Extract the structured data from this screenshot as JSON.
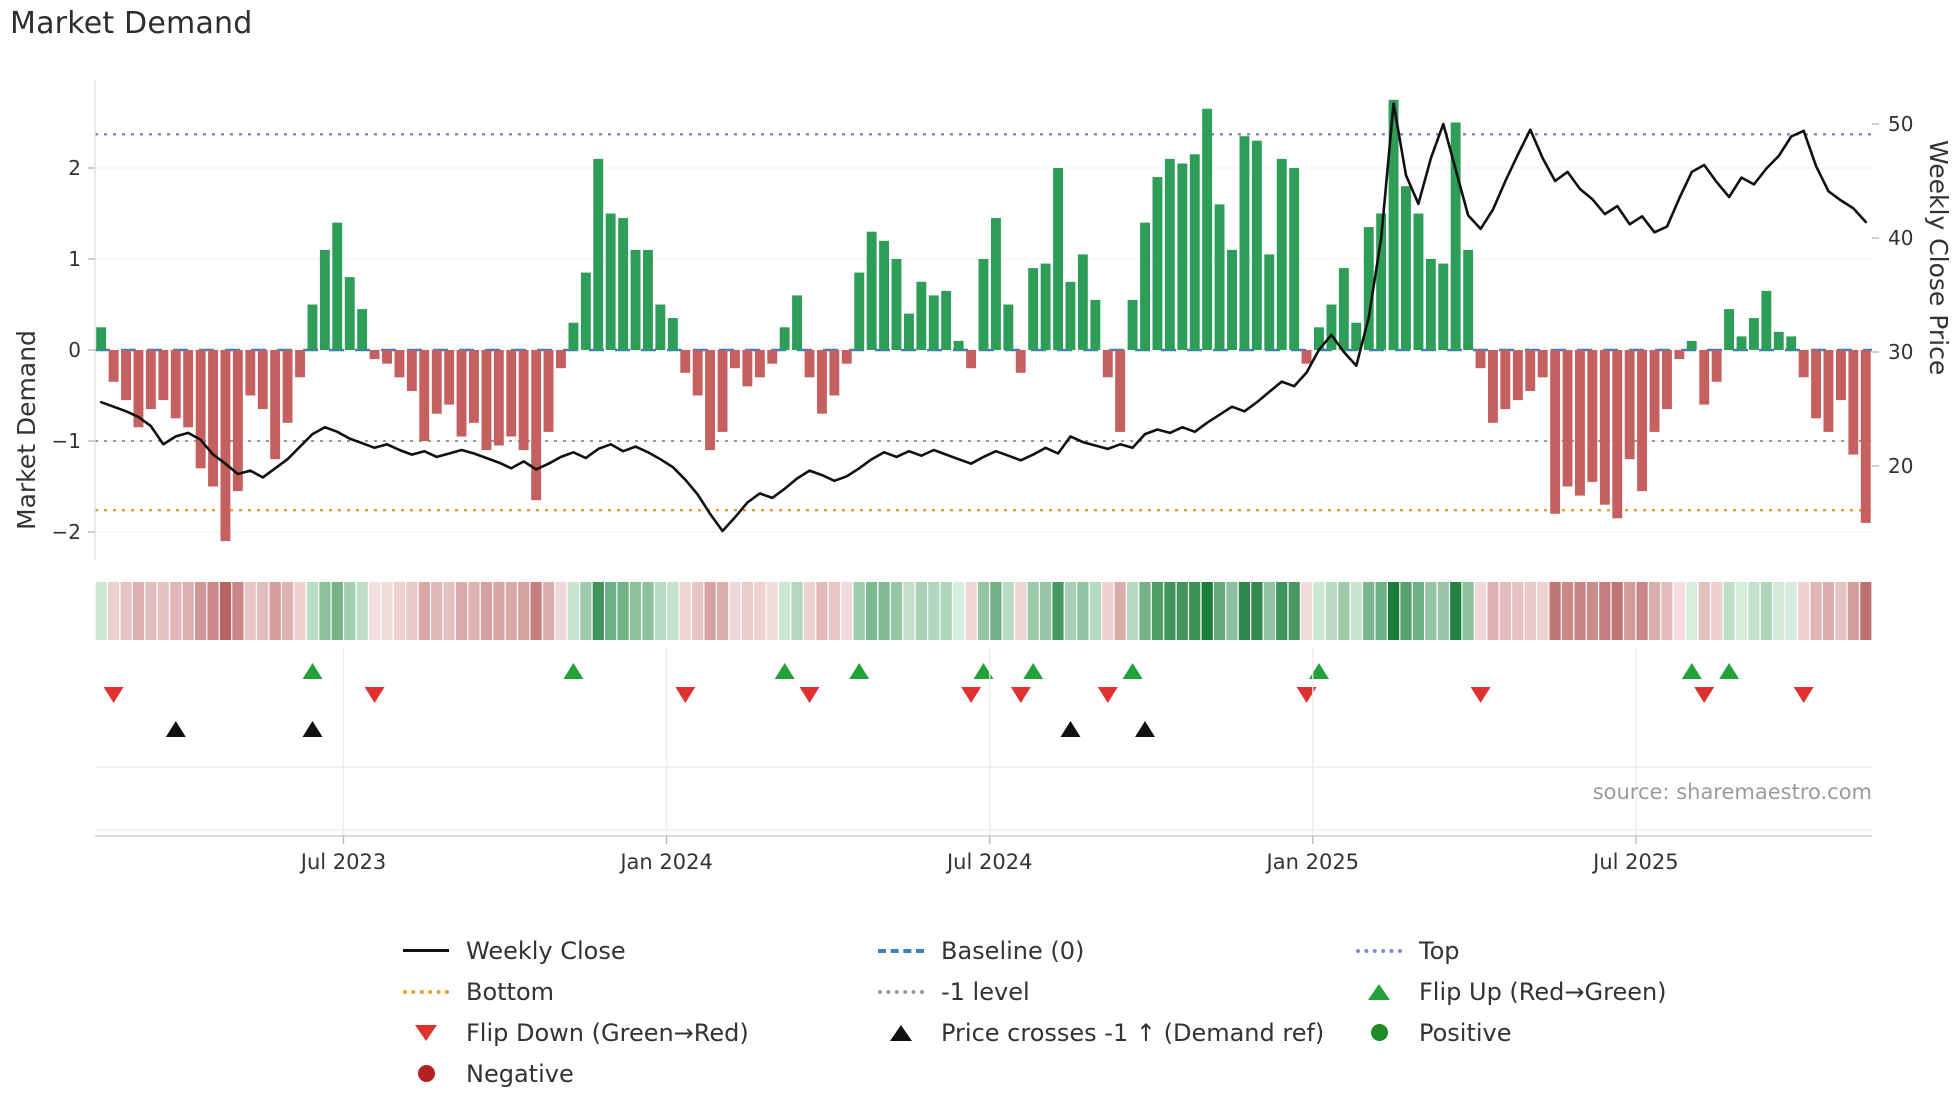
{
  "title": "Market Demand",
  "source_note": "source: sharemaestro.com",
  "y_left": {
    "label": "Market Demand",
    "ticks": [
      "2",
      "1",
      "0",
      "−1",
      "−2"
    ],
    "tick_values": [
      2,
      1,
      0,
      -1,
      -2
    ]
  },
  "y_right": {
    "label": "Weekly Close Price",
    "ticks": [
      "50",
      "40",
      "30",
      "20"
    ],
    "tick_values": [
      50,
      40,
      30,
      20
    ]
  },
  "legend": [
    {
      "icon": "line-black",
      "label": "Weekly Close"
    },
    {
      "icon": "dash-blue",
      "label": "Baseline (0)"
    },
    {
      "icon": "dot-purple",
      "label": "Top"
    },
    {
      "icon": "dot-orange",
      "label": "Bottom"
    },
    {
      "icon": "dot-gray",
      "label": "-1 level"
    },
    {
      "icon": "tri-up-green",
      "label": "Flip Up (Red→Green)"
    },
    {
      "icon": "tri-down-red",
      "label": "Flip Down (Green→Red)"
    },
    {
      "icon": "tri-up-black",
      "label": "Price crosses -1 ↑ (Demand ref)"
    },
    {
      "icon": "circle-green",
      "label": "Positive"
    },
    {
      "icon": "circle-darkred",
      "label": "Negative"
    }
  ],
  "colors": {
    "bar_positive": "#2e9d57",
    "bar_negative": "#c4605f",
    "price_line": "#111111",
    "baseline": "#3f7fc1",
    "top_line": "#8186d9",
    "bottom_line": "#f09a2e",
    "minus1_line": "#999999",
    "flip_up": "#23a239",
    "flip_down": "#e03131",
    "price_cross": "#111111",
    "positive_dot": "#1f8b24",
    "negative_dot": "#b22222"
  },
  "chart_data": {
    "type": "bar",
    "subtype": "weekly demand bars + price line overlay + heatmap strip + signal markers",
    "title": "Market Demand",
    "ylabel_left": "Market Demand",
    "ylabel_right": "Weekly Close Price",
    "ylim_left": [
      -2.6,
      3.0
    ],
    "ylim_right": [
      13,
      53
    ],
    "n_points": 143,
    "x_ticks": [
      {
        "label": "Jul 2023",
        "i": 19.5
      },
      {
        "label": "Jan 2024",
        "i": 45.5
      },
      {
        "label": "Jul 2024",
        "i": 71.5
      },
      {
        "label": "Jan 2025",
        "i": 97.5
      },
      {
        "label": "Jul 2025",
        "i": 123.5
      }
    ],
    "levels": {
      "baseline": 0,
      "top": 2.37,
      "bottom": -1.76,
      "minus1": -1
    },
    "series": [
      {
        "name": "Market Demand",
        "type": "bar",
        "values": [
          0.25,
          -0.35,
          -0.55,
          -0.85,
          -0.65,
          -0.55,
          -0.75,
          -0.85,
          -1.3,
          -1.5,
          -2.1,
          -1.55,
          -0.5,
          -0.65,
          -1.2,
          -0.8,
          -0.3,
          0.5,
          1.1,
          1.4,
          0.8,
          0.45,
          -0.1,
          -0.15,
          -0.3,
          -0.45,
          -1.0,
          -0.7,
          -0.6,
          -0.95,
          -0.8,
          -1.1,
          -1.05,
          -0.95,
          -1.1,
          -1.65,
          -0.9,
          -0.2,
          0.3,
          0.85,
          2.1,
          1.5,
          1.45,
          1.1,
          1.1,
          0.5,
          0.35,
          -0.25,
          -0.5,
          -1.1,
          -0.9,
          -0.2,
          -0.4,
          -0.3,
          -0.15,
          0.25,
          0.6,
          -0.3,
          -0.7,
          -0.5,
          -0.15,
          0.85,
          1.3,
          1.2,
          1.0,
          0.4,
          0.75,
          0.6,
          0.65,
          0.1,
          -0.2,
          1.0,
          1.45,
          0.5,
          -0.25,
          0.9,
          0.95,
          2.0,
          0.75,
          1.05,
          0.55,
          -0.3,
          -0.9,
          0.55,
          1.4,
          1.9,
          2.1,
          2.05,
          2.15,
          2.65,
          1.6,
          1.1,
          2.35,
          2.3,
          1.05,
          2.1,
          2.0,
          -0.15,
          0.25,
          0.5,
          0.9,
          0.3,
          1.35,
          1.5,
          2.75,
          1.8,
          1.5,
          1.0,
          0.95,
          2.5,
          1.1,
          -0.2,
          -0.8,
          -0.65,
          -0.55,
          -0.45,
          -0.3,
          -1.8,
          -1.5,
          -1.6,
          -1.45,
          -1.7,
          -1.85,
          -1.2,
          -1.55,
          -0.9,
          -0.65,
          -0.1,
          0.1,
          -0.6,
          -0.35,
          0.45,
          0.15,
          0.35,
          0.65,
          0.2,
          0.15,
          -0.3,
          -0.75,
          -0.9,
          -0.55,
          -1.15,
          -1.9
        ]
      },
      {
        "name": "Weekly Close",
        "type": "line",
        "values": [
          25.6,
          25.2,
          24.8,
          24.3,
          23.5,
          21.9,
          22.6,
          22.9,
          22.3,
          21.0,
          20.2,
          19.3,
          19.6,
          19.0,
          19.8,
          20.6,
          21.7,
          22.8,
          23.4,
          23.0,
          22.4,
          22.0,
          21.6,
          21.9,
          21.4,
          21.0,
          21.3,
          20.8,
          21.1,
          21.4,
          21.1,
          20.7,
          20.3,
          19.8,
          20.4,
          19.7,
          20.2,
          20.8,
          21.2,
          20.7,
          21.5,
          21.9,
          21.3,
          21.7,
          21.2,
          20.6,
          19.9,
          18.8,
          17.5,
          15.8,
          14.3,
          15.5,
          16.8,
          17.6,
          17.2,
          18.0,
          18.9,
          19.6,
          19.2,
          18.7,
          19.1,
          19.8,
          20.6,
          21.2,
          20.8,
          21.3,
          20.9,
          21.4,
          21.0,
          20.6,
          20.2,
          20.8,
          21.3,
          20.9,
          20.5,
          21.0,
          21.6,
          21.1,
          22.6,
          22.1,
          21.8,
          21.5,
          21.9,
          21.6,
          22.8,
          23.2,
          22.9,
          23.4,
          23.0,
          23.8,
          24.5,
          25.2,
          24.8,
          25.6,
          26.5,
          27.4,
          27.0,
          28.2,
          30.2,
          31.5,
          30.0,
          28.8,
          33.0,
          40.0,
          51.8,
          45.5,
          43.0,
          47.0,
          50.0,
          46.0,
          42.0,
          40.8,
          42.5,
          45.0,
          47.3,
          49.5,
          47.0,
          45.0,
          45.8,
          44.3,
          43.4,
          42.1,
          42.8,
          41.2,
          41.9,
          40.5,
          41.0,
          43.5,
          45.8,
          46.4,
          44.9,
          43.6,
          45.3,
          44.7,
          46.1,
          47.2,
          48.9,
          49.4,
          46.3,
          44.1,
          43.3,
          42.6,
          41.4
        ]
      }
    ],
    "markers": {
      "flip_up_indices": [
        17,
        38,
        55,
        61,
        71,
        75,
        83,
        98,
        128,
        131
      ],
      "flip_down_indices": [
        1,
        22,
        47,
        57,
        70,
        74,
        81,
        97,
        111,
        129,
        137
      ],
      "price_cross_indices": [
        6,
        17,
        78,
        84
      ]
    },
    "heatmap": "strip derived from sign and magnitude of Market Demand values (red = negative, green = positive)"
  }
}
